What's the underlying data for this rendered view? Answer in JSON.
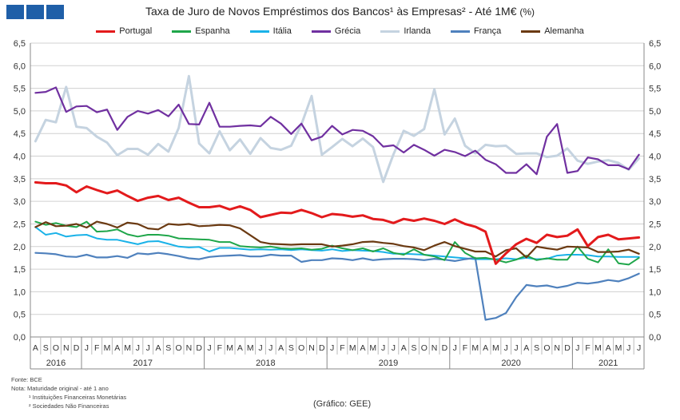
{
  "header": {
    "logo_colors": [
      "#1f5fa8",
      "#1f5fa8",
      "#1f5fa8",
      "#1f5fa8"
    ],
    "title": "Taxa de Juro de Novos Empréstimos  dos Bancos¹ às Empresas² -  Até 1M€",
    "title_unit": "(%)"
  },
  "notes": {
    "source": "Fonte: BCE",
    "note": "Nota: Maturidade original - até 1 ano",
    "fn1": "¹ Instituições Financeiras Monetárias",
    "fn2": "² Sociedades Não Financeiras"
  },
  "credit": "(Gráfico: GEE)",
  "chart_data": {
    "type": "line",
    "title": "Taxa de Juro de Novos Empréstimos  dos Bancos¹ às Empresas² -  Até 1M€ (%)",
    "ylim": [
      0,
      6.5
    ],
    "yticks": [
      "0,0",
      "0,5",
      "1,0",
      "1,5",
      "2,0",
      "2,5",
      "3,0",
      "3,5",
      "4,0",
      "4,5",
      "5,0",
      "5,5",
      "6,0",
      "6,5"
    ],
    "grid": true,
    "legend_position": "top",
    "x_months": [
      "A",
      "S",
      "O",
      "N",
      "D",
      "J",
      "F",
      "M",
      "A",
      "M",
      "J",
      "J",
      "A",
      "S",
      "O",
      "N",
      "D",
      "J",
      "F",
      "M",
      "A",
      "M",
      "J",
      "J",
      "A",
      "S",
      "O",
      "N",
      "D",
      "J",
      "F",
      "M",
      "A",
      "M",
      "J",
      "J",
      "A",
      "S",
      "O",
      "N",
      "D",
      "J",
      "F",
      "M",
      "A",
      "M",
      "J",
      "J",
      "A",
      "S",
      "O",
      "N",
      "D",
      "J",
      "F",
      "M",
      "A",
      "M",
      "J",
      "J"
    ],
    "years": [
      {
        "label": "2016",
        "start": 0,
        "end": 4
      },
      {
        "label": "2017",
        "start": 5,
        "end": 16
      },
      {
        "label": "2018",
        "start": 17,
        "end": 28
      },
      {
        "label": "2019",
        "start": 29,
        "end": 40
      },
      {
        "label": "2020",
        "start": 41,
        "end": 52
      },
      {
        "label": "2021",
        "start": 53,
        "end": 59
      }
    ],
    "series": [
      {
        "name": "Portugal",
        "color": "#e31a1c",
        "width": 3,
        "values": [
          3.42,
          3.4,
          3.4,
          3.35,
          3.2,
          3.33,
          3.25,
          3.18,
          3.24,
          3.12,
          3.01,
          3.08,
          3.12,
          3.03,
          3.08,
          2.97,
          2.87,
          2.87,
          2.9,
          2.82,
          2.89,
          2.81,
          2.65,
          2.7,
          2.75,
          2.74,
          2.81,
          2.74,
          2.65,
          2.72,
          2.7,
          2.66,
          2.69,
          2.61,
          2.59,
          2.52,
          2.61,
          2.57,
          2.62,
          2.57,
          2.5,
          2.6,
          2.5,
          2.44,
          2.33,
          1.62,
          1.85,
          2.05,
          2.17,
          2.08,
          2.26,
          2.21,
          2.24,
          2.38,
          2.01,
          2.21,
          2.26,
          2.16,
          2.18,
          2.2
        ]
      },
      {
        "name": "Espanha",
        "color": "#1fa64a",
        "width": 2,
        "values": [
          2.55,
          2.48,
          2.52,
          2.46,
          2.43,
          2.55,
          2.33,
          2.34,
          2.38,
          2.27,
          2.22,
          2.26,
          2.26,
          2.24,
          2.18,
          2.17,
          2.16,
          2.15,
          2.1,
          2.1,
          2.01,
          1.99,
          1.98,
          2.0,
          1.96,
          1.95,
          1.96,
          1.93,
          1.95,
          2.02,
          1.96,
          1.92,
          1.96,
          1.89,
          1.96,
          1.86,
          1.82,
          1.94,
          1.82,
          1.78,
          1.7,
          2.1,
          1.86,
          1.74,
          1.75,
          1.71,
          1.65,
          1.71,
          1.8,
          1.7,
          1.74,
          1.71,
          1.71,
          2.0,
          1.73,
          1.65,
          1.94,
          1.63,
          1.6,
          1.75
        ]
      },
      {
        "name": "Itália",
        "color": "#1ab2e8",
        "width": 2,
        "values": [
          2.43,
          2.26,
          2.3,
          2.22,
          2.25,
          2.26,
          2.18,
          2.15,
          2.15,
          2.1,
          2.05,
          2.11,
          2.12,
          2.06,
          2.0,
          1.98,
          1.99,
          1.89,
          1.97,
          1.97,
          1.95,
          1.93,
          1.94,
          1.93,
          1.94,
          1.92,
          1.94,
          1.92,
          1.91,
          1.94,
          1.9,
          1.92,
          1.91,
          1.9,
          1.88,
          1.84,
          1.84,
          1.83,
          1.82,
          1.8,
          1.78,
          1.76,
          1.74,
          1.72,
          1.72,
          1.72,
          1.74,
          1.72,
          1.75,
          1.72,
          1.73,
          1.8,
          1.82,
          1.82,
          1.81,
          1.78,
          1.78,
          1.77,
          1.77,
          1.77
        ]
      },
      {
        "name": "Grécia",
        "color": "#7030a0",
        "width": 2.2,
        "values": [
          5.4,
          5.42,
          5.52,
          4.98,
          5.1,
          5.11,
          4.97,
          5.03,
          4.58,
          4.87,
          5.0,
          4.94,
          5.02,
          4.88,
          5.14,
          4.71,
          4.7,
          5.18,
          4.65,
          4.65,
          4.67,
          4.68,
          4.66,
          4.87,
          4.72,
          4.49,
          4.72,
          4.35,
          4.43,
          4.67,
          4.48,
          4.58,
          4.56,
          4.44,
          4.21,
          4.24,
          4.08,
          4.25,
          4.14,
          4.01,
          4.14,
          4.09,
          4.0,
          4.12,
          3.92,
          3.82,
          3.63,
          3.63,
          3.82,
          3.6,
          4.43,
          4.71,
          3.63,
          3.67,
          3.97,
          3.93,
          3.8,
          3.8,
          3.71,
          4.03
        ]
      },
      {
        "name": "Irlanda",
        "color": "#c5d3e0",
        "width": 3,
        "values": [
          4.33,
          4.8,
          4.75,
          5.53,
          4.65,
          4.62,
          4.43,
          4.3,
          4.02,
          4.16,
          4.16,
          4.03,
          4.27,
          4.1,
          4.62,
          5.77,
          4.28,
          4.06,
          4.55,
          4.13,
          4.37,
          4.05,
          4.4,
          4.18,
          4.14,
          4.23,
          4.7,
          5.33,
          4.03,
          4.2,
          4.38,
          4.22,
          4.39,
          4.2,
          3.43,
          4.04,
          4.56,
          4.45,
          4.6,
          5.48,
          4.48,
          4.83,
          4.23,
          4.06,
          4.25,
          4.22,
          4.23,
          4.05,
          4.06,
          4.06,
          3.98,
          4.01,
          4.17,
          3.9,
          3.83,
          3.88,
          3.91,
          3.85,
          3.7,
          3.95
        ]
      },
      {
        "name": "França",
        "color": "#4f81bd",
        "width": 2.2,
        "values": [
          1.86,
          1.85,
          1.83,
          1.78,
          1.77,
          1.82,
          1.76,
          1.76,
          1.79,
          1.75,
          1.85,
          1.83,
          1.86,
          1.83,
          1.79,
          1.74,
          1.72,
          1.77,
          1.79,
          1.8,
          1.81,
          1.78,
          1.78,
          1.82,
          1.8,
          1.8,
          1.66,
          1.7,
          1.7,
          1.74,
          1.73,
          1.7,
          1.74,
          1.7,
          1.72,
          1.73,
          1.73,
          1.72,
          1.7,
          1.73,
          1.71,
          1.68,
          1.72,
          1.75,
          0.38,
          0.42,
          0.53,
          0.88,
          1.15,
          1.12,
          1.14,
          1.09,
          1.13,
          1.2,
          1.18,
          1.21,
          1.26,
          1.23,
          1.3,
          1.4
        ]
      },
      {
        "name": "Alemanha",
        "color": "#6b3a12",
        "width": 2.2,
        "values": [
          2.43,
          2.54,
          2.45,
          2.46,
          2.5,
          2.42,
          2.55,
          2.5,
          2.42,
          2.53,
          2.5,
          2.4,
          2.38,
          2.5,
          2.48,
          2.5,
          2.45,
          2.46,
          2.48,
          2.47,
          2.4,
          2.25,
          2.1,
          2.06,
          2.05,
          2.04,
          2.05,
          2.05,
          2.05,
          2.0,
          2.02,
          2.05,
          2.1,
          2.11,
          2.08,
          2.06,
          2.01,
          1.98,
          1.92,
          2.02,
          2.1,
          2.01,
          1.95,
          1.89,
          1.89,
          1.78,
          1.92,
          1.96,
          1.76,
          2.0,
          1.96,
          1.93,
          2.0,
          1.99,
          1.98,
          1.88,
          1.88,
          1.89,
          1.93,
          1.84
        ]
      }
    ]
  }
}
